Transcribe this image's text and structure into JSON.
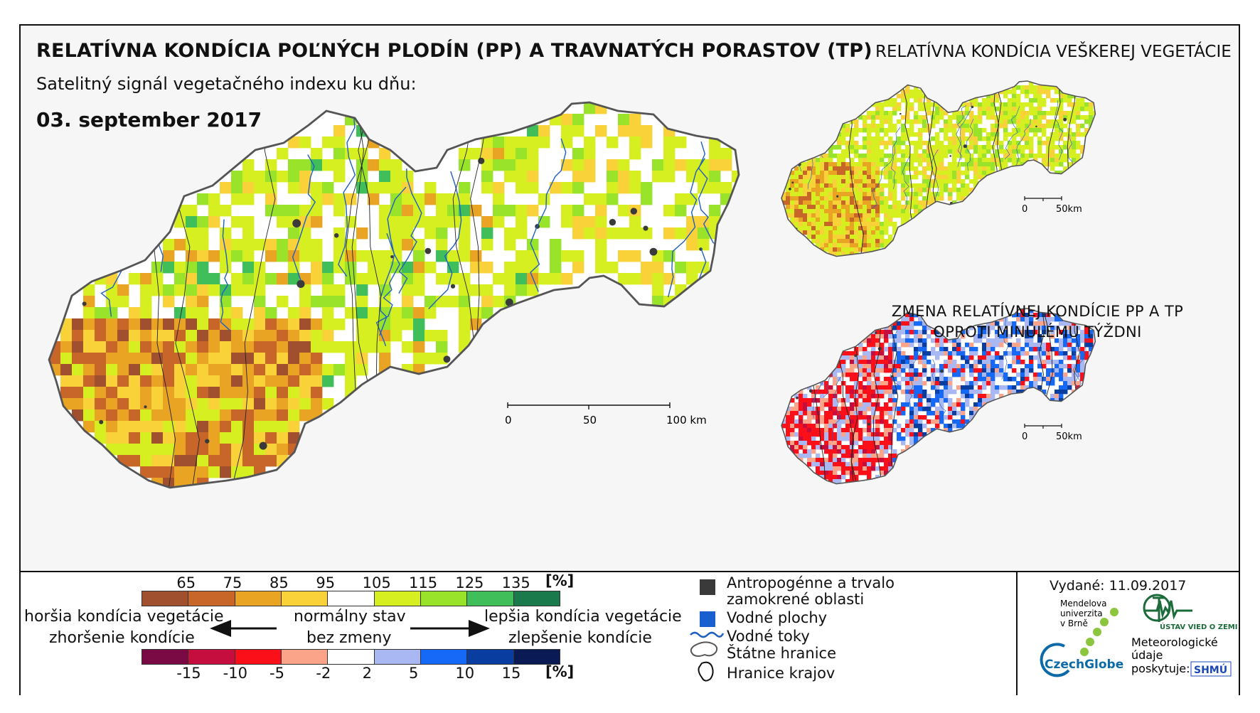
{
  "title_main": "RELATÍVNA KONDÍCIA POĽNÝCH PLODÍN (PP) A TRAVNATÝCH PORASTOV (TP)",
  "subtitle": "Satelitný signál vegetačného indexu ku dňu:",
  "date": "03. september 2017",
  "title_right": "RELATÍVNA KONDÍCIA VEŠKEREJ VEGETÁCIE",
  "title_change_1": "ZMENA RELATÍVNEJ KONDÍCIE PP A TP",
  "title_change_2": "OPROTI MINULÉMU TÝŽDNI",
  "scale_main": {
    "labels": [
      "0",
      "50",
      "100 km"
    ]
  },
  "scale_small_1": {
    "labels": [
      "0",
      "50km"
    ]
  },
  "scale_small_2": {
    "labels": [
      "0",
      "50km"
    ]
  },
  "legend_condition": {
    "labels": [
      "65",
      "75",
      "85",
      "95",
      "105",
      "115",
      "125",
      "135"
    ],
    "unit": "[%]",
    "colors": [
      "#a0502e",
      "#c8662a",
      "#e9a423",
      "#f8d238",
      "#ffffff",
      "#d6ef21",
      "#99e32a",
      "#3fbe5a",
      "#1b7a4c"
    ]
  },
  "legend_change": {
    "labels": [
      "-15",
      "-10",
      "-5",
      "-2",
      "2",
      "5",
      "10",
      "15"
    ],
    "unit": "[%]",
    "colors": [
      "#7a0a44",
      "#c60e3e",
      "#fb0f18",
      "#fba48a",
      "#ffffff",
      "#a9b8f3",
      "#1669f6",
      "#0a3da0",
      "#0a1a55"
    ]
  },
  "arrow_labels": {
    "worse_1": "horšia kondícia vegetácie",
    "worse_2": "zhoršenie kondície",
    "normal_1": "normálny stav",
    "normal_2": "bez zmeny",
    "better_1": "lepšia kondícia vegetácie",
    "better_2": "zlepšenie kondície"
  },
  "legend_items": {
    "urban_1": "Antropogénne a trvalo",
    "urban_2": "zamokrené oblasti",
    "water": "Vodné plochy",
    "rivers": "Vodné toky",
    "border": "Štátne hranice",
    "regions": "Hranice krajov"
  },
  "issued": "Vydané: 11.09.2017",
  "logos": {
    "mendel_1": "Mendelova",
    "mendel_2": "univerzita",
    "mendel_3": "v Brně",
    "czechglobe": "CzechGlobe",
    "uvgz": "ÚSTAV VIED O ZEMI",
    "shmu": "SHMÚ",
    "meteo_1": "Meteorologické",
    "meteo_2": "údaje",
    "meteo_3": "poskytuje:"
  },
  "colors": {
    "border": "#555555",
    "river": "#1f5fbf",
    "urban": "#3a3a3a",
    "water": "#1a5fd0"
  }
}
